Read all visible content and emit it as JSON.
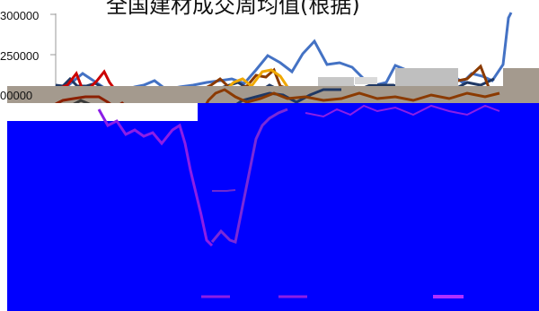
{
  "title": "全国建材成交周均值(根据)",
  "y_ticks": [
    "300000",
    "250000",
    "00000"
  ],
  "colors": {
    "band": "#a49a8e",
    "overlay": "#0000ff",
    "blue_line": "#4472c4",
    "navy_line": "#1f3864",
    "red_line": "#cc0000",
    "brown_line": "#8b3a00",
    "orange_line": "#f0a800",
    "purple_line": "#8c1ee6"
  }
}
